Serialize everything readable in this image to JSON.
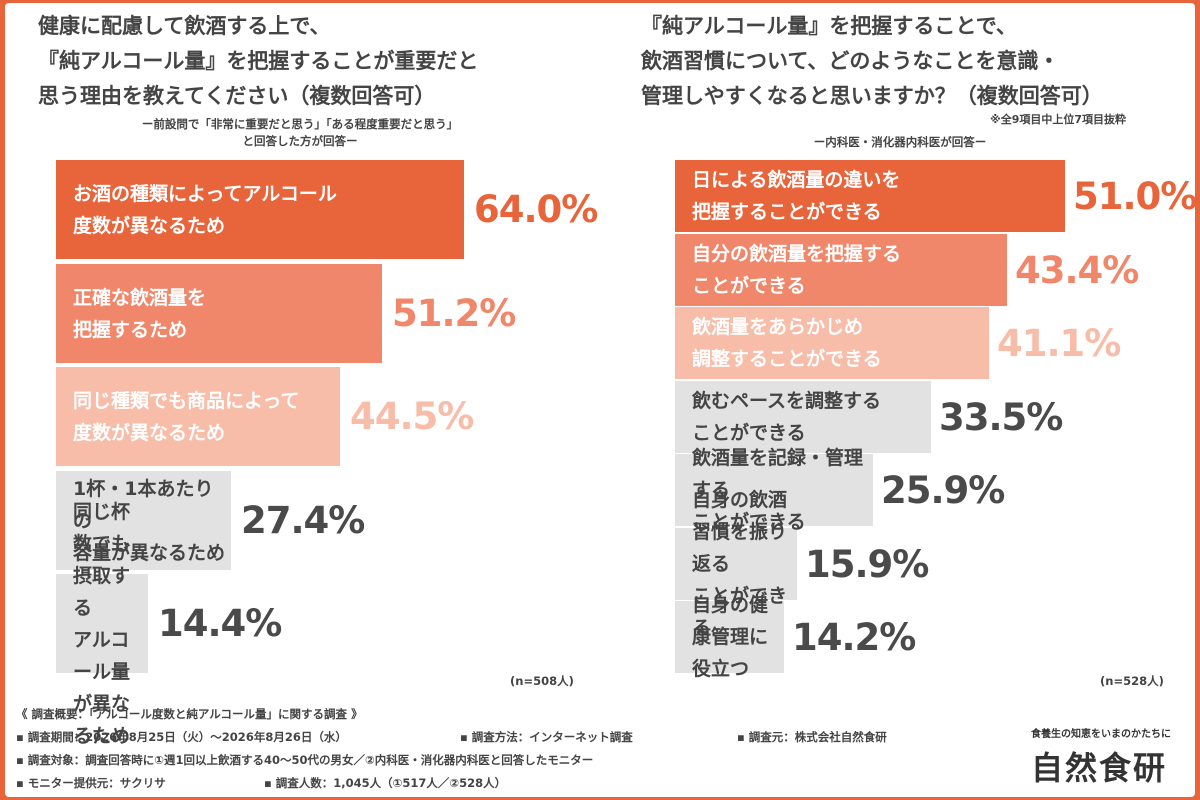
{
  "colors": {
    "orange_dark": "#e8643a",
    "orange_mid": "#f0876a",
    "orange_light": "#f8bda9",
    "gray": "#e2e2e2",
    "text": "#444444"
  },
  "left": {
    "title": "健康に配慮して飲酒する上で、\n『純アルコール量』を把握することが重要だと\n思う理由を教えてください（複数回答可）",
    "subtitle": "ー前設問で「非常に重要だと思う」「ある程度重要だと思う」\nと回答した方が回答ー",
    "n_label": "(n=508人)"
  },
  "right": {
    "title": "『純アルコール量』を把握することで、\n飲酒習慣について、どのようなことを意識・\n管理しやすくなると思いますか？（複数回答可）",
    "note": "※全9項目中上位7項目抜粋",
    "subtitle": "ー内科医・消化器内科医が回答ー",
    "n_label": "(n=528人)"
  },
  "chart_data": [
    {
      "type": "bar",
      "orientation": "horizontal",
      "categories": [
        "お酒の種類によってアルコール\n度数が異なるため",
        "正確な飲酒量を\n把握するため",
        "同じ種類でも商品によって\n度数が異なるため",
        "1杯・1本あたりの\n容量が異なるため",
        "同じ杯数でも摂取する\nアルコール量が異なるため"
      ],
      "values": [
        64.0,
        51.2,
        44.5,
        27.4,
        14.4
      ],
      "value_labels": [
        "64.0%",
        "51.2%",
        "44.5%",
        "27.4%",
        "14.4%"
      ],
      "bar_colors": [
        "orange_dark",
        "orange_mid",
        "orange_light",
        "gray",
        "gray"
      ],
      "xlim": [
        0,
        100
      ]
    },
    {
      "type": "bar",
      "orientation": "horizontal",
      "categories": [
        "日による飲酒量の違いを\n把握することができる",
        "自分の飲酒量を把握する\nことができる",
        "飲酒量をあらかじめ\n調整することができる",
        "飲むペースを調整する\nことができる",
        "飲酒量を記録・管理する\nことができる",
        "自身の飲酒習慣を振り返る\nことができる",
        "自身の健康管理に役立つ"
      ],
      "values": [
        51.0,
        43.4,
        41.1,
        33.5,
        25.9,
        15.9,
        14.2
      ],
      "value_labels": [
        "51.0%",
        "43.4%",
        "41.1%",
        "33.5%",
        "25.9%",
        "15.9%",
        "14.2%"
      ],
      "bar_colors": [
        "orange_dark",
        "orange_mid",
        "orange_light",
        "gray",
        "gray",
        "gray",
        "gray"
      ],
      "xlim": [
        0,
        100
      ]
    }
  ],
  "footer": {
    "overview": "《 調査概要：「アルコール度数と純アルコール量」に関する調査 》",
    "period": "▪ 調査期間：2026年8月25日（火）～2026年8月26日（水）",
    "method": "▪ 調査方法：インターネット調査",
    "source": "▪ 調査元：株式会社自然食研",
    "target": "▪ 調査対象：調査回答時に①週1回以上飲酒する40～50代の男女／②内科医・消化器内科医と回答したモニター",
    "provider": "▪ モニター提供元：サクリサ",
    "count": "▪ 調査人数：1,045人（①517人／②528人）",
    "tagline": "食養生の知恵をいまのかたちに",
    "logo": "自然食研"
  }
}
